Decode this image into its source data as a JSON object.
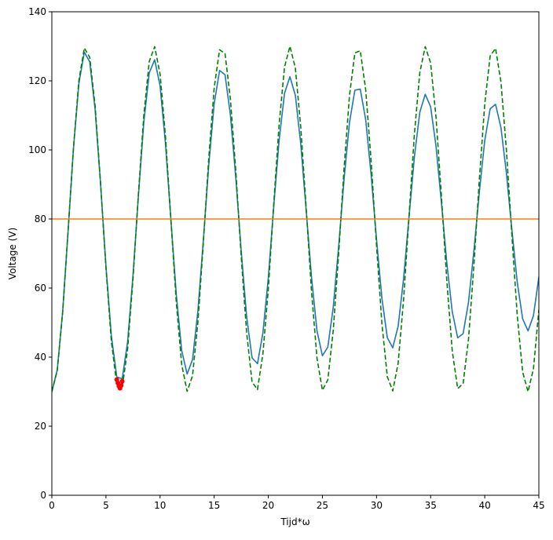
{
  "chart_data": {
    "type": "line",
    "xlabel": "Tijd*ω",
    "ylabel": "Voltage (V)",
    "xlim": [
      0,
      45
    ],
    "ylim": [
      0,
      140
    ],
    "xticks": [
      0,
      5,
      10,
      15,
      20,
      25,
      30,
      35,
      40,
      45
    ],
    "yticks": [
      0,
      20,
      40,
      60,
      80,
      100,
      120,
      140
    ],
    "grid": false,
    "x": [
      0,
      0.5,
      1,
      1.5,
      2,
      2.5,
      3,
      3.5,
      4,
      4.5,
      5,
      5.5,
      6,
      6.5,
      7,
      7.5,
      8,
      8.5,
      9,
      9.5,
      10,
      10.5,
      11,
      11.5,
      12,
      12.5,
      13,
      13.5,
      14,
      14.5,
      15,
      15.5,
      16,
      16.5,
      17,
      17.5,
      18,
      18.5,
      19,
      19.5,
      20,
      20.5,
      21,
      21.5,
      22,
      22.5,
      23,
      23.5,
      24,
      24.5,
      25,
      25.5,
      26,
      26.5,
      27,
      27.5,
      28,
      28.5,
      29,
      29.5,
      30,
      30.5,
      31,
      31.5,
      32,
      32.5,
      33,
      33.5,
      34,
      34.5,
      35,
      35.5,
      36,
      36.5,
      37,
      37.5,
      38,
      38.5,
      39,
      39.5,
      40,
      40.5,
      41,
      41.5,
      42,
      42.5,
      43,
      43.5,
      44,
      44.5,
      45
    ],
    "series": [
      {
        "color": "#1f77b4",
        "style": "solid",
        "values": [
          30,
          36.3,
          53.2,
          76.5,
          100.5,
          119.3,
          128.3,
          125.5,
          111.6,
          90.2,
          66.4,
          46.1,
          34.3,
          33.7,
          44.4,
          63.7,
          86.8,
          108.1,
          122.3,
          126.1,
          118.6,
          101.8,
          79.8,
          58.1,
          41.9,
          35.1,
          39.3,
          53.5,
          73.9,
          95.7,
          113.4,
          123.0,
          121.8,
          110.1,
          91.9,
          70.6,
          51.7,
          39.8,
          38.1,
          47.0,
          62.9,
          83.5,
          102.8,
          116.4,
          121.2,
          115.8,
          101.7,
          82.5,
          62.9,
          47.6,
          40.4,
          42.9,
          54.4,
          72.0,
          91.5,
          107.9,
          117.3,
          117.6,
          108.7,
          92.9,
          74.1,
          57.0,
          45.6,
          42.7,
          49.0,
          62.7,
          80.5,
          98.0,
          110.9,
          116.1,
          112.5,
          101.0,
          84.6,
          67.1,
          53.1,
          45.6,
          46.8,
          55.9,
          70.8,
          87.8,
          102.7,
          111.9,
          113.2,
          106.4,
          93.3,
          77.1,
          61.8,
          51.1,
          47.6,
          52.0,
          63.2
        ]
      },
      {
        "color": "#008000",
        "style": "dashed",
        "values": [
          30,
          36.1,
          53.0,
          76.5,
          100.8,
          120.1,
          129.5,
          126.8,
          112.7,
          90.5,
          65.8,
          44.6,
          32.0,
          31.2,
          42.3,
          62.7,
          87.3,
          110.1,
          125.6,
          129.9,
          122.0,
          103.8,
          79.8,
          55.8,
          37.8,
          30.1,
          34.6,
          50.3,
          73.2,
          97.7,
          118.0,
          129.0,
          127.9,
          114.7,
          93.8,
          69.0,
          47.0,
          32.8,
          30.6,
          40.9,
          59.6,
          84.2,
          107.4,
          124.0,
          130.0,
          123.7,
          106.6,
          83.1,
          58.8,
          39.7,
          30.4,
          33.4,
          47.7,
          69.9,
          94.6,
          115.7,
          128.1,
          128.7,
          117.4,
          96.9,
          72.3,
          49.6,
          34.3,
          30.2,
          38.3,
          56.6,
          80.7,
          104.6,
          122.4,
          129.9,
          125.2,
          109.4,
          86.4,
          61.9,
          41.7,
          30.9,
          32.3,
          45.2,
          66.7,
          91.4,
          113.3,
          127.2,
          129.4,
          119.6,
          100.0,
          75.6,
          52.2,
          35.7,
          30.0,
          36.6,
          53.7
        ]
      },
      {
        "color": "#ff7f0e",
        "style": "solid",
        "x": [
          0,
          45
        ],
        "values": [
          80,
          80
        ]
      },
      {
        "color": "#ff0000",
        "style": "points",
        "x": [
          6.0,
          6.1,
          6.2,
          6.3,
          6.4,
          6.5
        ],
        "values": [
          33.5,
          32.5,
          31.6,
          31.0,
          31.8,
          33.0
        ]
      }
    ]
  }
}
